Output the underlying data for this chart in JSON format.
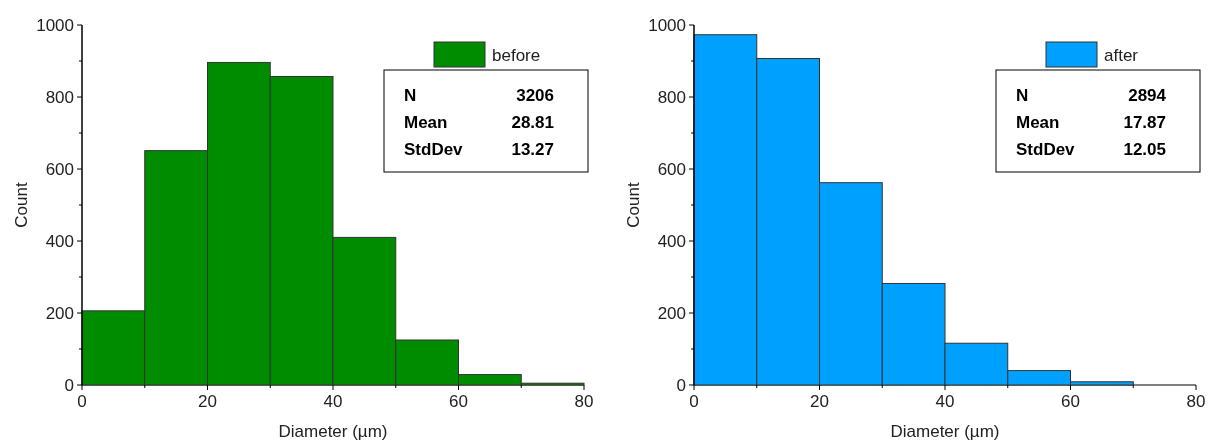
{
  "chart_data": [
    {
      "type": "histogram",
      "xlabel": "Diameter (µm)",
      "ylabel": "Count",
      "bins": [
        0,
        10,
        20,
        30,
        40,
        50,
        60,
        70,
        80
      ],
      "series": [
        {
          "name": "before",
          "color": "#008c00",
          "values": [
            206,
            651,
            896,
            857,
            410,
            125,
            29,
            5
          ]
        }
      ],
      "xlim": [
        0,
        80
      ],
      "xticks": [
        0,
        {
          "value": 10,
          "label": null
        },
        20,
        {
          "value": 30,
          "label": null
        },
        40,
        {
          "value": 50,
          "label": null
        },
        60,
        {
          "value": 70,
          "label": null
        },
        80
      ],
      "ylim": [
        0,
        1000
      ],
      "yticks": [
        0,
        {
          "value": 100,
          "label": null
        },
        200,
        {
          "value": 300,
          "label": null
        },
        400,
        {
          "value": 500,
          "label": null
        },
        600,
        {
          "value": 700,
          "label": null
        },
        800,
        {
          "value": 900,
          "label": null
        },
        1000
      ],
      "grid": false,
      "legend": "top right",
      "annotations": [
        "N",
        "3206",
        "Mean",
        "28.81",
        "StdDev",
        "13.27"
      ]
    },
    {
      "type": "histogram",
      "xlabel": "Diameter (µm)",
      "ylabel": "Count",
      "bins": [
        0,
        10,
        20,
        30,
        40,
        50,
        60,
        70,
        80
      ],
      "series": [
        {
          "name": "after",
          "color": "#00a0ff",
          "values": [
            973,
            907,
            562,
            282,
            116,
            40,
            9,
            0
          ]
        }
      ],
      "xlim": [
        0,
        80
      ],
      "xticks": [
        0,
        {
          "value": 10,
          "label": null
        },
        20,
        {
          "value": 30,
          "label": null
        },
        40,
        {
          "value": 50,
          "label": null
        },
        60,
        {
          "value": 70,
          "label": null
        },
        80
      ],
      "ylim": [
        0,
        1000
      ],
      "yticks": [
        0,
        {
          "value": 100,
          "label": null
        },
        200,
        {
          "value": 300,
          "label": null
        },
        400,
        {
          "value": 500,
          "label": null
        },
        600,
        {
          "value": 700,
          "label": null
        },
        800,
        {
          "value": 900,
          "label": null
        },
        1000
      ],
      "grid": false,
      "legend": "top right",
      "annotations": [
        "N",
        "2894",
        "Mean",
        "17.87",
        "StdDev",
        "12.05"
      ]
    }
  ]
}
